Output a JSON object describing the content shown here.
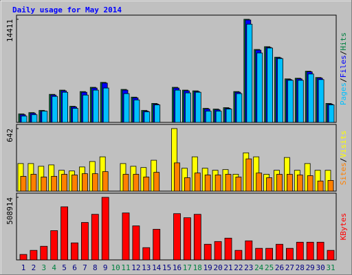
{
  "chart_data": {
    "type": "bar",
    "title": "Daily usage for May 2014",
    "categories": [
      "1",
      "2",
      "3",
      "4",
      "5",
      "6",
      "7",
      "8",
      "9",
      "10",
      "11",
      "12",
      "13",
      "14",
      "15",
      "16",
      "17",
      "18",
      "19",
      "20",
      "21",
      "22",
      "23",
      "24",
      "25",
      "26",
      "27",
      "28",
      "29",
      "30",
      "31"
    ],
    "category_colors": [
      "#000080",
      "#000080",
      "#008040",
      "#008040",
      "#000080",
      "#000080",
      "#000080",
      "#000080",
      "#000080",
      "#008040",
      "#008040",
      "#000080",
      "#000080",
      "#000080",
      "#000080",
      "#000080",
      "#008040",
      "#008040",
      "#000080",
      "#000080",
      "#000080",
      "#000080",
      "#000080",
      "#008040",
      "#008040",
      "#000080",
      "#000080",
      "#000080",
      "#000080",
      "#000080",
      "#008040"
    ],
    "legend_separator": "/",
    "panels": [
      {
        "ylim": [
          0,
          14411
        ],
        "yticks": [
          14411
        ],
        "series": [
          {
            "name": "Hits",
            "color": "#008040",
            "values": [
              1180,
              1370,
              1670,
              3920,
              4510,
              2250,
              4310,
              4900,
              5590,
              0,
              4610,
              3530,
              1670,
              2650,
              0,
              4900,
              4510,
              4410,
              1960,
              1860,
              2060,
              4310,
              14411,
              10190,
              10580,
              9110,
              6080,
              6170,
              7150,
              6270,
              2650
            ]
          },
          {
            "name": "Files",
            "color": "#0000ff",
            "values": [
              1080,
              1270,
              1570,
              3820,
              4410,
              2160,
              4210,
              4800,
              5490,
              0,
              4510,
              3430,
              1570,
              2550,
              0,
              4800,
              4410,
              4310,
              1860,
              1760,
              1960,
              4210,
              14310,
              10090,
              10480,
              9010,
              5980,
              6080,
              7060,
              6180,
              2550
            ]
          },
          {
            "name": "Pages",
            "color": "#00c0ff",
            "values": [
              880,
              1080,
              1570,
              3630,
              4210,
              1960,
              3820,
              4510,
              4800,
              0,
              4020,
              3140,
              1470,
              2450,
              0,
              4510,
              4120,
              4210,
              1570,
              1570,
              1860,
              4020,
              13720,
              9700,
              10390,
              8920,
              5880,
              5880,
              6760,
              5980,
              2450
            ]
          }
        ]
      },
      {
        "ylim": [
          0,
          642
        ],
        "yticks": [
          642
        ],
        "series": [
          {
            "name": "Visits",
            "color": "#ffff00",
            "values": [
              283,
              283,
              255,
              269,
              214,
              207,
              248,
              304,
              352,
              0,
              283,
              255,
              242,
              317,
              0,
              642,
              235,
              352,
              235,
              214,
              221,
              173,
              393,
              352,
              173,
              214,
              345,
              214,
              283,
              214,
              214
            ]
          },
          {
            "name": "Sites",
            "color": "#ff8000",
            "values": [
              152,
              173,
              145,
              152,
              173,
              166,
              179,
              179,
              200,
              0,
              173,
              173,
              145,
              193,
              0,
              290,
              138,
              186,
              166,
              166,
              173,
              145,
              331,
              186,
              138,
              173,
              173,
              166,
              159,
              104,
              110
            ]
          }
        ]
      },
      {
        "ylim": [
          0,
          508914
        ],
        "yticks": [
          508914
        ],
        "series": [
          {
            "name": "KBytes",
            "color": "#ff0000",
            "values": [
              44256,
              77448,
              110640,
              237876,
              431496,
              138300,
              304260,
              370644,
              508914,
              0,
              381708,
              276600,
              99576,
              248940,
              0,
              376176,
              342984,
              370644,
              127236,
              149364,
              177024,
              77448,
              154896,
              94044,
              94044,
              127236,
              94044,
              143832,
              143832,
              143832,
              77448
            ]
          }
        ]
      }
    ]
  }
}
